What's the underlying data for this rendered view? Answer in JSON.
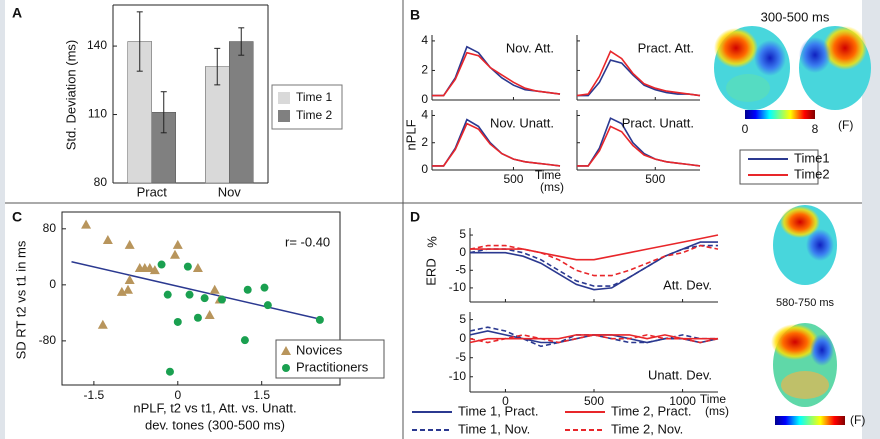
{
  "chart_data": [
    {
      "type": "bar",
      "panel": "A",
      "ylabel": "Std. Deviation (ms)",
      "categories": [
        "Pract",
        "Nov"
      ],
      "series": [
        {
          "name": "Time 1",
          "color": "#d9d9d9",
          "values": [
            142,
            131
          ],
          "errors": [
            13,
            8
          ]
        },
        {
          "name": "Time 2",
          "color": "#808080",
          "values": [
            111,
            142
          ],
          "errors": [
            9,
            6
          ]
        }
      ],
      "ylim": [
        80,
        158
      ],
      "yticks": [
        80,
        110,
        140
      ],
      "legend": "right"
    },
    {
      "type": "line",
      "panel": "B",
      "ylabel": "nPLF",
      "xlabel": [
        "Time",
        "(ms)"
      ],
      "x": [
        -200,
        -100,
        0,
        100,
        200,
        300,
        400,
        500,
        600,
        700,
        800,
        900
      ],
      "xlim": [
        -200,
        900
      ],
      "xticks": [
        500
      ],
      "ylim": [
        0,
        4.4
      ],
      "yticks": [
        0,
        2,
        4
      ],
      "subplots": [
        {
          "title": "Nov. Att.",
          "series": [
            {
              "name": "Time1",
              "color": "#2b3990",
              "values": [
                0.3,
                0.3,
                1.5,
                3.6,
                3.2,
                2.2,
                1.5,
                1,
                0.7,
                0.6,
                0.5,
                0.4
              ]
            },
            {
              "name": "Time2",
              "color": "#e8262a",
              "values": [
                0.3,
                0.3,
                1.4,
                3.2,
                3.0,
                2.2,
                1.7,
                1.2,
                0.8,
                0.6,
                0.5,
                0.4
              ]
            }
          ]
        },
        {
          "title": "Pract. Att.",
          "series": [
            {
              "color": "#2b3990",
              "values": [
                0.3,
                0.3,
                1.2,
                2.7,
                2.5,
                1.7,
                1.0,
                0.7,
                0.5,
                0.4,
                0.4,
                0.3
              ]
            },
            {
              "color": "#e8262a",
              "values": [
                0.3,
                0.4,
                1.6,
                3.3,
                2.8,
                1.8,
                1.1,
                0.8,
                0.6,
                0.5,
                0.4,
                0.3
              ]
            }
          ]
        },
        {
          "title": "Nov. Unatt.",
          "series": [
            {
              "color": "#2b3990",
              "values": [
                0.3,
                0.3,
                1.6,
                3.7,
                3.2,
                2.0,
                1.2,
                0.8,
                0.6,
                0.5,
                0.4,
                0.3
              ]
            },
            {
              "color": "#e8262a",
              "values": [
                0.3,
                0.3,
                1.5,
                3.4,
                3.0,
                1.9,
                1.2,
                0.8,
                0.6,
                0.5,
                0.4,
                0.3
              ]
            }
          ]
        },
        {
          "title": "Pract. Unatt.",
          "series": [
            {
              "color": "#2b3990",
              "values": [
                0.3,
                0.3,
                1.6,
                3.8,
                3.4,
                2.0,
                1.2,
                0.8,
                0.6,
                0.5,
                0.4,
                0.3
              ]
            },
            {
              "color": "#e8262a",
              "values": [
                0.3,
                0.3,
                1.4,
                3.2,
                2.8,
                1.8,
                1.1,
                0.8,
                0.6,
                0.5,
                0.4,
                0.3
              ]
            }
          ]
        }
      ],
      "topomap": {
        "title": "300-500 ms",
        "colorbar": {
          "ticks": [
            0,
            8
          ],
          "label": "(F)"
        }
      }
    },
    {
      "type": "scatter",
      "panel": "C",
      "ylabel": "SD RT t2 vs t1 in ms",
      "xlabel": [
        "nPLF, t2 vs t1, Att. vs. Unatt.",
        "dev. tones (300-500 ms)"
      ],
      "annotation": "r= -0.40",
      "xlim": [
        -2.07,
        2.9
      ],
      "xticks": [
        -1.5,
        0,
        1.5
      ],
      "ylim": [
        -143,
        104
      ],
      "yticks": [
        80,
        0,
        -80
      ],
      "series": [
        {
          "name": "Novices",
          "color": "#b8955c",
          "marker": "triangle",
          "x": [
            -1.64,
            -1.25,
            -0.86,
            -0.59,
            -0.5,
            -0.68,
            -0.41,
            0,
            -0.05,
            0.36,
            0.66,
            0.75,
            0.57,
            -0.86,
            -1.0,
            -1.34,
            -0.89
          ],
          "y": [
            86,
            64,
            57,
            24,
            24,
            24,
            21,
            57,
            43,
            24,
            -7,
            -21,
            -43,
            7,
            -10,
            -57,
            -7
          ]
        },
        {
          "name": "Practitioners",
          "color": "#1aa050",
          "marker": "circle",
          "x": [
            -0.29,
            0.18,
            0.21,
            -0.18,
            0,
            0.36,
            0.79,
            1.25,
            1.55,
            1.61,
            1.2,
            -0.14,
            2.54,
            0.48
          ],
          "y": [
            29,
            26,
            -14,
            -14,
            -53,
            -47,
            -21,
            -7,
            -4,
            -29,
            -79,
            -124,
            -50,
            -19
          ]
        }
      ],
      "fit_line": {
        "x": [
          -1.9,
          2.6
        ],
        "y": [
          33,
          -50
        ],
        "color": "#2b3990"
      }
    },
    {
      "type": "line",
      "panel": "D",
      "ylabel": "ERD",
      "yunit": "%",
      "xlabel": [
        "Time",
        "(ms)"
      ],
      "x": [
        -200,
        -100,
        0,
        100,
        200,
        300,
        400,
        500,
        600,
        700,
        800,
        900,
        1000,
        1100,
        1200
      ],
      "xlim": [
        -200,
        1200
      ],
      "xticks": [
        0,
        500,
        1000
      ],
      "ylim": [
        -14,
        7
      ],
      "yticks": [
        5,
        0,
        -5,
        -10
      ],
      "subplots": [
        {
          "title": "Att. Dev.",
          "series": [
            {
              "name": "Time 1, Pract.",
              "color": "#2b3990",
              "dash": false,
              "values": [
                0,
                0,
                0,
                -1,
                -3,
                -6,
                -9,
                -10.5,
                -10,
                -7,
                -4,
                -1,
                1,
                3,
                3
              ]
            },
            {
              "name": "Time 1, Nov.",
              "color": "#2b3990",
              "dash": true,
              "values": [
                0,
                1,
                1,
                0,
                -2,
                -5,
                -8,
                -9.5,
                -9.5,
                -7,
                -4,
                -1,
                1,
                2,
                2
              ]
            },
            {
              "name": "Time 2, Pract.",
              "color": "#e8262a",
              "dash": false,
              "values": [
                1,
                1,
                1,
                1,
                0,
                -1,
                -2,
                -2,
                -1,
                0,
                1,
                2,
                3,
                4,
                5
              ]
            },
            {
              "name": "Time 2, Nov.",
              "color": "#e8262a",
              "dash": true,
              "values": [
                1,
                2,
                2,
                1,
                0,
                -2,
                -5,
                -6.5,
                -6.5,
                -5,
                -3,
                -1,
                0,
                2,
                1
              ]
            }
          ]
        },
        {
          "title": "Unatt. Dev.",
          "series": [
            {
              "color": "#2b3990",
              "dash": false,
              "values": [
                1,
                2,
                1,
                0,
                -1,
                -1,
                0,
                1,
                1,
                0,
                -1,
                0,
                0,
                -1,
                0
              ]
            },
            {
              "color": "#2b3990",
              "dash": true,
              "values": [
                2,
                3,
                2,
                0,
                -2,
                -1,
                1,
                1,
                0,
                -1,
                -1,
                0,
                1,
                0,
                0
              ]
            },
            {
              "color": "#e8262a",
              "dash": false,
              "values": [
                -1,
                0,
                0,
                0,
                0,
                0,
                1,
                1,
                1,
                1,
                0,
                1,
                0,
                0,
                0
              ]
            },
            {
              "color": "#e8262a",
              "dash": true,
              "values": [
                0,
                -1,
                0,
                1,
                0,
                -1,
                0,
                1,
                0,
                0,
                1,
                0,
                0,
                -1,
                0
              ]
            }
          ]
        }
      ],
      "topomap": {
        "title": "580-750 ms",
        "colorbar": {
          "label": "(F)"
        }
      }
    }
  ]
}
